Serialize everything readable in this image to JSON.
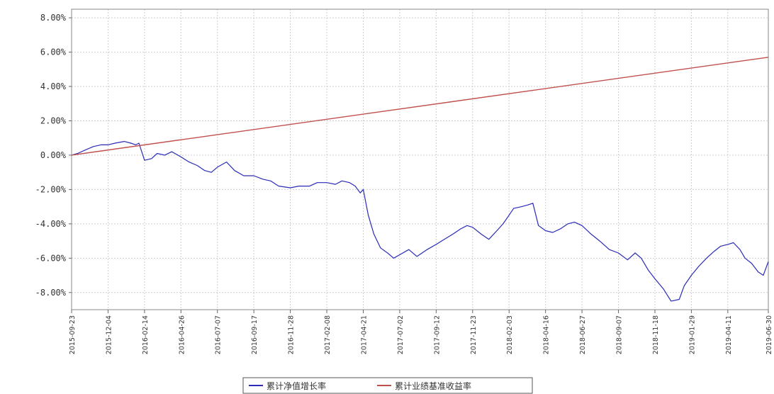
{
  "chart_data": {
    "type": "line",
    "title": "",
    "xlabel": "",
    "ylabel": "",
    "ylim": [
      -9.0,
      8.5
    ],
    "y_ticks": [
      "8.00%",
      "6.00%",
      "4.00%",
      "2.00%",
      "0.00%",
      "-2.00%",
      "-4.00%",
      "-6.00%",
      "-8.00%"
    ],
    "x_tick_labels": [
      "2015-09-23",
      "2015-12-04",
      "2016-02-14",
      "2016-04-26",
      "2016-07-07",
      "2016-09-17",
      "2016-11-28",
      "2017-02-08",
      "2017-04-21",
      "2017-07-02",
      "2017-09-12",
      "2017-11-23",
      "2018-02-03",
      "2018-04-16",
      "2018-06-27",
      "2018-09-07",
      "2018-11-18",
      "2019-01-29",
      "2019-04-11",
      "2019-06-30"
    ],
    "grid": true,
    "legend_position": "bottom-center",
    "series": [
      {
        "name": "累计净值增长率",
        "color": "#2b2bb8",
        "x": [
          "2015-09-23",
          "2015-10-05",
          "2015-10-20",
          "2015-11-05",
          "2015-11-20",
          "2015-12-04",
          "2015-12-18",
          "2016-01-05",
          "2016-01-18",
          "2016-01-28",
          "2016-02-03",
          "2016-02-14",
          "2016-02-28",
          "2016-03-10",
          "2016-03-25",
          "2016-04-08",
          "2016-04-26",
          "2016-05-12",
          "2016-05-28",
          "2016-06-12",
          "2016-06-25",
          "2016-07-07",
          "2016-07-25",
          "2016-08-10",
          "2016-08-28",
          "2016-09-17",
          "2016-10-05",
          "2016-10-20",
          "2016-11-05",
          "2016-11-28",
          "2016-12-15",
          "2017-01-05",
          "2017-01-20",
          "2017-02-08",
          "2017-02-25",
          "2017-03-10",
          "2017-03-25",
          "2017-04-05",
          "2017-04-15",
          "2017-04-21",
          "2017-05-01",
          "2017-05-12",
          "2017-05-25",
          "2017-06-08",
          "2017-06-20",
          "2017-07-02",
          "2017-07-20",
          "2017-08-05",
          "2017-08-25",
          "2017-09-12",
          "2017-09-28",
          "2017-10-15",
          "2017-10-30",
          "2017-11-12",
          "2017-11-23",
          "2017-12-10",
          "2017-12-25",
          "2018-01-10",
          "2018-01-22",
          "2018-02-03",
          "2018-02-12",
          "2018-02-28",
          "2018-03-12",
          "2018-03-22",
          "2018-04-02",
          "2018-04-16",
          "2018-04-30",
          "2018-05-15",
          "2018-05-30",
          "2018-06-12",
          "2018-06-27",
          "2018-07-15",
          "2018-08-01",
          "2018-08-20",
          "2018-09-07",
          "2018-09-25",
          "2018-10-10",
          "2018-10-22",
          "2018-11-05",
          "2018-11-18",
          "2018-12-05",
          "2018-12-20",
          "2019-01-05",
          "2019-01-15",
          "2019-01-29",
          "2019-02-12",
          "2019-02-28",
          "2019-03-15",
          "2019-03-28",
          "2019-04-11",
          "2019-04-22",
          "2019-05-05",
          "2019-05-15",
          "2019-05-28",
          "2019-06-10",
          "2019-06-20",
          "2019-06-30"
        ],
        "values": [
          0.0,
          0.1,
          0.3,
          0.5,
          0.6,
          0.6,
          0.7,
          0.8,
          0.7,
          0.6,
          0.7,
          -0.3,
          -0.2,
          0.1,
          0.0,
          0.2,
          -0.1,
          -0.4,
          -0.6,
          -0.9,
          -1.0,
          -0.7,
          -0.4,
          -0.9,
          -1.2,
          -1.2,
          -1.4,
          -1.5,
          -1.8,
          -1.9,
          -1.8,
          -1.8,
          -1.6,
          -1.6,
          -1.7,
          -1.5,
          -1.6,
          -1.8,
          -2.2,
          -2.0,
          -3.5,
          -4.6,
          -5.4,
          -5.7,
          -6.0,
          -5.8,
          -5.5,
          -5.9,
          -5.5,
          -5.2,
          -4.9,
          -4.6,
          -4.3,
          -4.1,
          -4.2,
          -4.6,
          -4.9,
          -4.4,
          -4.0,
          -3.5,
          -3.1,
          -3.0,
          -2.9,
          -2.8,
          -4.1,
          -4.4,
          -4.5,
          -4.3,
          -4.0,
          -3.9,
          -4.1,
          -4.6,
          -5.0,
          -5.5,
          -5.7,
          -6.1,
          -5.7,
          -6.0,
          -6.7,
          -7.2,
          -7.8,
          -8.5,
          -8.4,
          -7.6,
          -7.0,
          -6.5,
          -6.0,
          -5.6,
          -5.3,
          -5.2,
          -5.1,
          -5.5,
          -6.0,
          -6.3,
          -6.8,
          -7.0,
          -6.2
        ]
      },
      {
        "name": "累计业绩基准收益率",
        "color": "#c0504d",
        "x": [
          "2015-09-23",
          "2019-06-30"
        ],
        "values": [
          0.0,
          5.7
        ]
      }
    ]
  }
}
